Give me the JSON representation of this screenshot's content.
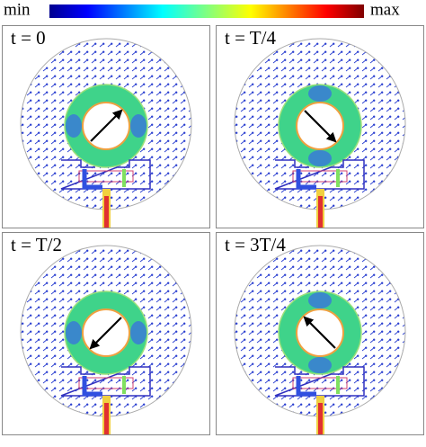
{
  "colorbar": {
    "min_label": "min",
    "max_label": "max"
  },
  "panels": [
    {
      "title": "t = 0"
    },
    {
      "title": "t = T/4"
    },
    {
      "title": "t = T/2"
    },
    {
      "title": "t = 3T/4"
    }
  ]
}
